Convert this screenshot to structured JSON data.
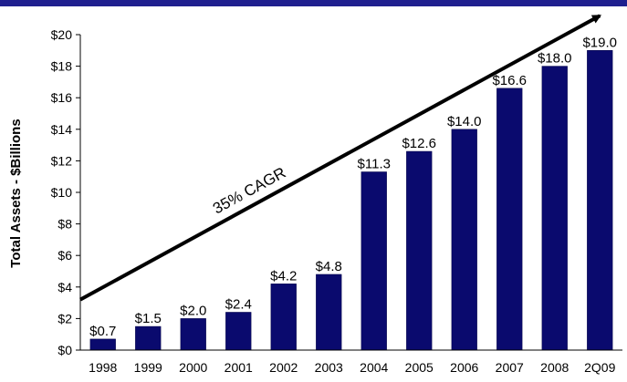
{
  "colors": {
    "top_band": "#1f1f8f",
    "bar": "#0a0a6e",
    "bar_edge": "#000044",
    "axis": "#000000",
    "arrow": "#000000"
  },
  "chart_data": {
    "type": "bar",
    "categories": [
      "1998",
      "1999",
      "2000",
      "2001",
      "2002",
      "2003",
      "2004",
      "2005",
      "2006",
      "2007",
      "2008",
      "2Q09"
    ],
    "values": [
      0.7,
      1.5,
      2.0,
      2.4,
      4.2,
      4.8,
      11.3,
      12.6,
      14.0,
      16.6,
      18.0,
      19.0
    ],
    "data_labels": [
      "$0.7",
      "$1.5",
      "$2.0",
      "$2.4",
      "$4.2",
      "$4.8",
      "$11.3",
      "$12.6",
      "$14.0",
      "$16.6",
      "$18.0",
      "$19.0"
    ],
    "ylabel": "Total Assets - $Billions",
    "xlabel": "",
    "ylim": [
      0,
      20
    ],
    "yticks": [
      0,
      2,
      4,
      6,
      8,
      10,
      12,
      14,
      16,
      18,
      20
    ],
    "ytick_labels": [
      "$0",
      "$2",
      "$4",
      "$6",
      "$8",
      "$10",
      "$12",
      "$14",
      "$16",
      "$18",
      "$20"
    ],
    "grid": false,
    "legend": "none",
    "annotation": {
      "text": "35% CAGR",
      "arrow_from": [
        1998,
        3.2
      ],
      "arrow_to": [
        2008.9,
        21.2
      ]
    }
  }
}
